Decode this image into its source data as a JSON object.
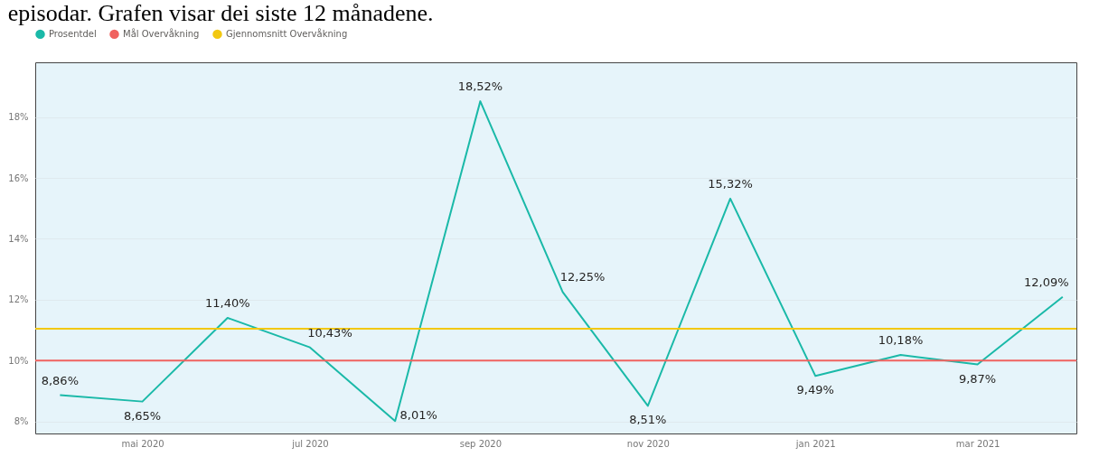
{
  "chart_data": {
    "type": "line",
    "title": "episodar. Grafen visar dei siste 12 månadene.",
    "x": [
      "2020-04",
      "2020-05",
      "2020-06",
      "2020-07",
      "2020-08",
      "2020-09",
      "2020-10",
      "2020-11",
      "2020-12",
      "2021-01",
      "2021-02",
      "2021-03",
      "2021-04"
    ],
    "series": [
      {
        "name": "Prosentdel",
        "color": "#1ab9a8",
        "values": [
          8.86,
          8.65,
          11.4,
          10.43,
          8.01,
          18.52,
          12.25,
          8.51,
          15.32,
          9.49,
          10.18,
          9.87,
          12.09
        ],
        "value_labels": [
          "8,86%",
          "8,65%",
          "11,40%",
          "10,43%",
          "8,01%",
          "18,52%",
          "12,25%",
          "8,51%",
          "15,32%",
          "9,49%",
          "10,18%",
          "9,87%",
          "12,09%"
        ]
      }
    ],
    "ref_lines": [
      {
        "axis": "y",
        "value": 10,
        "label": "Mål Overvåkning",
        "color": "#f0625f"
      },
      {
        "axis": "y",
        "value": 11.04,
        "label": "Gjennomsnitt Overvåkning",
        "color": "#f2c811"
      }
    ],
    "xlim": [
      "2020-03-23",
      "2021-04-06"
    ],
    "xticks": [
      {
        "value": "2020-05",
        "label": "mai 2020"
      },
      {
        "value": "2020-07",
        "label": "jul 2020"
      },
      {
        "value": "2020-09",
        "label": "sep 2020"
      },
      {
        "value": "2020-11",
        "label": "nov 2020"
      },
      {
        "value": "2021-01",
        "label": "jan 2021"
      },
      {
        "value": "2021-03",
        "label": "mar 2021"
      }
    ],
    "ylim": [
      7.6,
      19.8
    ],
    "yticks": [
      {
        "value": 8,
        "label": "8%"
      },
      {
        "value": 10,
        "label": "10%"
      },
      {
        "value": 12,
        "label": "12%"
      },
      {
        "value": 14,
        "label": "14%"
      },
      {
        "value": 16,
        "label": "16%"
      },
      {
        "value": 18,
        "label": "18%"
      }
    ],
    "grid": "y",
    "legend": "top left",
    "marker": "none",
    "line_style": "solid"
  }
}
